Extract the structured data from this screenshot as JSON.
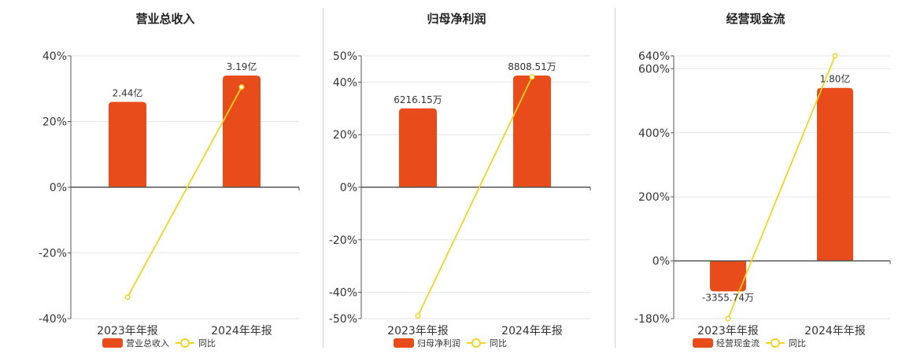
{
  "chart_data": [
    {
      "type": "bar",
      "title": "营业总收入",
      "categories": [
        "2023年年报",
        "2024年年报"
      ],
      "ylim": [
        -40,
        40
      ],
      "yticks": [
        "40%",
        "20%",
        "0%",
        "-20%",
        "-40%"
      ],
      "ytick_values": [
        40,
        20,
        0,
        -20,
        -40
      ],
      "series": [
        {
          "name": "营业总收入",
          "kind": "bar",
          "values": [
            26,
            34
          ],
          "labels": [
            "2.44亿",
            "3.19亿"
          ]
        },
        {
          "name": "同比",
          "kind": "line",
          "values": [
            -33.5,
            30.5
          ]
        }
      ],
      "legend": "bottom-center",
      "grid": true
    },
    {
      "type": "bar",
      "title": "归母净利润",
      "categories": [
        "2023年年报",
        "2024年年报"
      ],
      "ylim": [
        -50,
        50
      ],
      "yticks": [
        "50%",
        "40%",
        "20%",
        "0%",
        "-20%",
        "-40%",
        "-50%"
      ],
      "ytick_values": [
        50,
        40,
        20,
        0,
        -20,
        -40,
        -50
      ],
      "series": [
        {
          "name": "归母净利润",
          "kind": "bar",
          "values": [
            30,
            42.5
          ],
          "labels": [
            "6216.15万",
            "8808.51万"
          ]
        },
        {
          "name": "同比",
          "kind": "line",
          "values": [
            -49,
            42
          ]
        }
      ],
      "legend": "bottom-center",
      "grid": true
    },
    {
      "type": "bar",
      "title": "经营现金流",
      "categories": [
        "2023年年报",
        "2024年年报"
      ],
      "ylim": [
        -180,
        640
      ],
      "yticks": [
        "640%",
        "600%",
        "400%",
        "200%",
        "0%",
        "-180%"
      ],
      "ytick_values": [
        640,
        600,
        400,
        200,
        0,
        -180
      ],
      "series": [
        {
          "name": "经营现金流",
          "kind": "bar",
          "values": [
            -95,
            540
          ],
          "labels": [
            "-3355.74万",
            "1.80亿"
          ]
        },
        {
          "name": "同比",
          "kind": "line",
          "values": [
            -180,
            640
          ]
        }
      ],
      "legend": "bottom-center",
      "grid": true
    }
  ],
  "colors": {
    "bar": "#e84c1a",
    "line": "#f5d320",
    "axis": "#555555",
    "grid": "#e6e6e6",
    "text": "#333333"
  }
}
